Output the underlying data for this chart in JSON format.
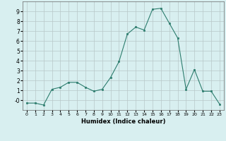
{
  "x": [
    0,
    1,
    2,
    3,
    4,
    5,
    6,
    7,
    8,
    9,
    10,
    11,
    12,
    13,
    14,
    15,
    16,
    17,
    18,
    19,
    20,
    21,
    22,
    23
  ],
  "y": [
    -0.3,
    -0.3,
    -0.5,
    1.1,
    1.3,
    1.8,
    1.8,
    1.3,
    0.9,
    1.1,
    2.3,
    3.9,
    6.7,
    7.4,
    7.1,
    9.2,
    9.3,
    7.8,
    6.3,
    1.1,
    3.1,
    0.9,
    0.9,
    -0.4
  ],
  "line_color": "#2d7d6e",
  "marker": "s",
  "marker_size": 1.8,
  "bg_color": "#d8eff0",
  "grid_color": "#b8c8c8",
  "xlabel": "Humidex (Indice chaleur)",
  "xlim": [
    -0.5,
    23.5
  ],
  "ylim": [
    -1.0,
    10.0
  ],
  "yticks": [
    0,
    1,
    2,
    3,
    4,
    5,
    6,
    7,
    8,
    9
  ],
  "ytick_labels": [
    "-0",
    "1",
    "2",
    "3",
    "4",
    "5",
    "6",
    "7",
    "8",
    "9"
  ],
  "xticks": [
    0,
    1,
    2,
    3,
    4,
    5,
    6,
    7,
    8,
    9,
    10,
    11,
    12,
    13,
    14,
    15,
    16,
    17,
    18,
    19,
    20,
    21,
    22,
    23
  ]
}
